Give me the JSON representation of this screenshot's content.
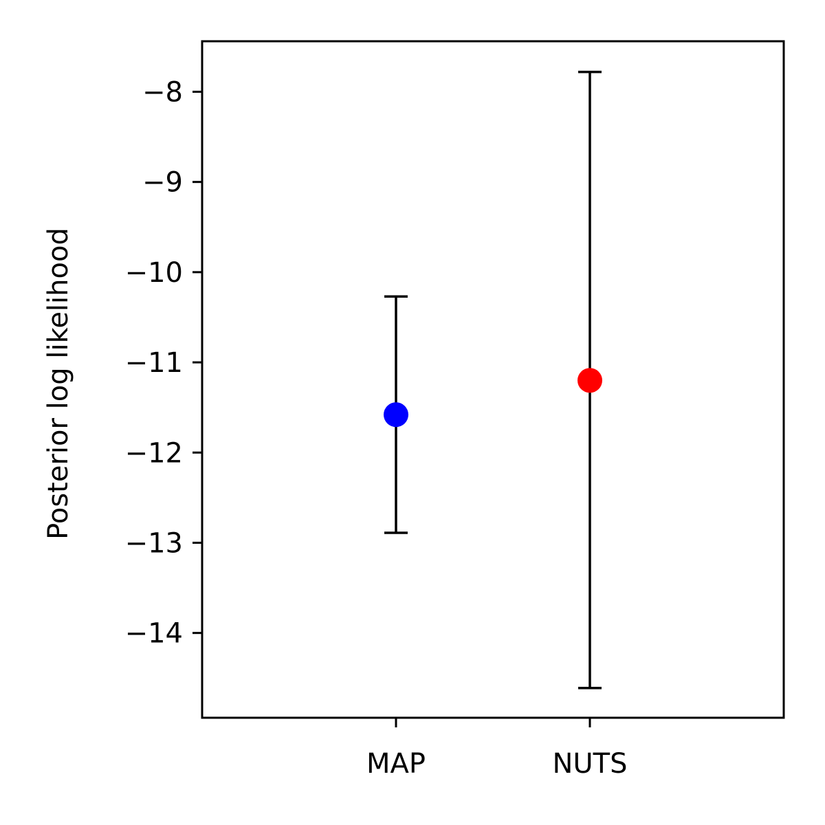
{
  "chart_data": {
    "type": "scatter",
    "title": "",
    "xlabel": "",
    "ylabel": "Posterior log likelihood",
    "categories": [
      "MAP",
      "NUTS"
    ],
    "points": [
      {
        "category": "MAP",
        "y": -11.58,
        "err_low": -12.89,
        "err_high": -10.27,
        "color": "#0000ff"
      },
      {
        "category": "NUTS",
        "y": -11.2,
        "err_low": -14.61,
        "err_high": -7.78,
        "color": "#ff0000"
      }
    ],
    "xlim": [
      -1,
      2
    ],
    "ylim": [
      -14.94,
      -7.44
    ],
    "yticks": [
      -14,
      -13,
      -12,
      -11,
      -10,
      -9,
      -8
    ],
    "ytick_labels": [
      "−14",
      "−13",
      "−12",
      "−11",
      "−10",
      "−9",
      "−8"
    ],
    "grid": false,
    "legend": "none",
    "errorbar_color": "#000000",
    "axis_color": "#000000"
  }
}
